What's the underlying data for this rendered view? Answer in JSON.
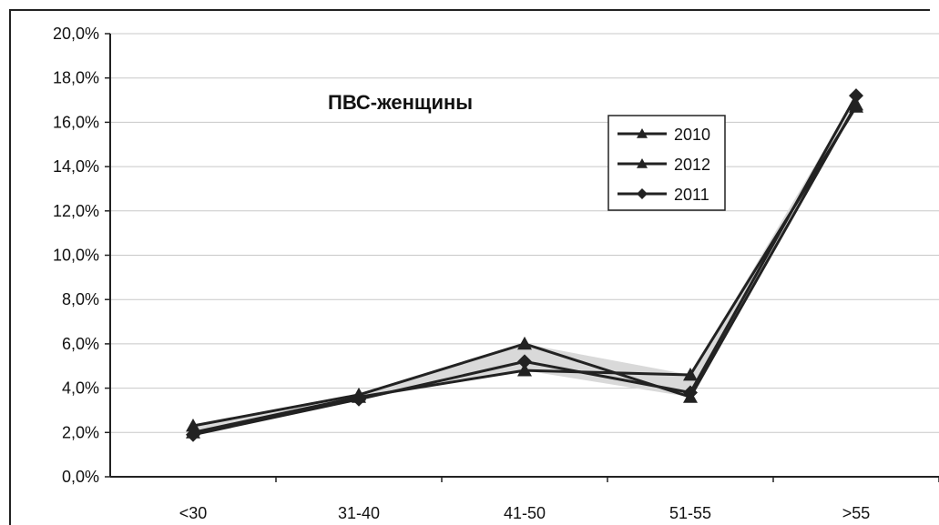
{
  "chart_data": {
    "type": "line",
    "title": "ПВС-женщины",
    "categories": [
      "<30",
      "31-40",
      "41-50",
      "51-55",
      ">55"
    ],
    "ylim": [
      0,
      20
    ],
    "yticks": [
      "0,0%",
      "2,0%",
      "4,0%",
      "6,0%",
      "8,0%",
      "10,0%",
      "12,0%",
      "14,0%",
      "16,0%",
      "18,0%",
      "20,0%"
    ],
    "grid": true,
    "legend_position": "top-right",
    "series": [
      {
        "name": "2010",
        "marker": "triangle",
        "values": [
          2.3,
          3.7,
          6.0,
          3.6,
          16.8
        ]
      },
      {
        "name": "2012",
        "marker": "triangle",
        "values": [
          2.0,
          3.6,
          4.8,
          4.6,
          16.7
        ]
      },
      {
        "name": "2011",
        "marker": "diamond",
        "values": [
          1.9,
          3.5,
          5.2,
          3.8,
          17.2
        ]
      }
    ],
    "colors": {
      "line": "#222222",
      "grid": "#c8c8c8",
      "fill": "#d9d9d9"
    }
  }
}
